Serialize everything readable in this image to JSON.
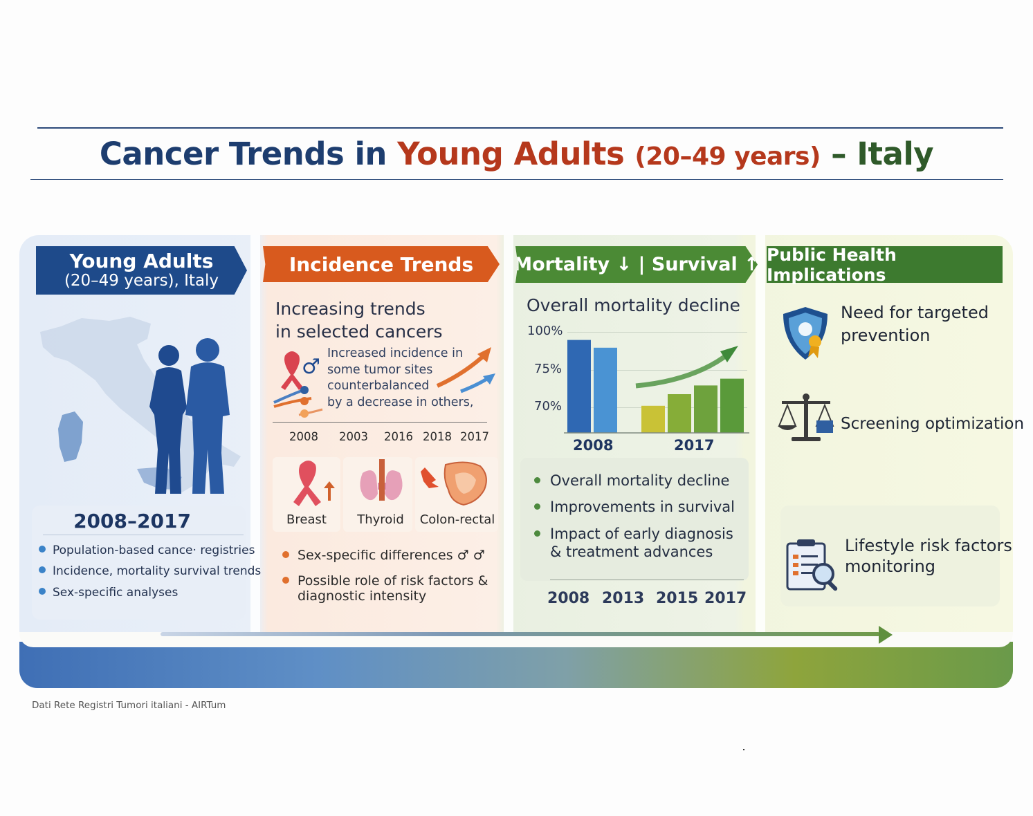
{
  "title": {
    "part1": "Cancer Trends in ",
    "part2": "Young Adults ",
    "part3": "(20–49 years)",
    "part4": " – Italy"
  },
  "panel1": {
    "banner_line1": "Young Adults",
    "banner_line2": "(20–49 years), Italy",
    "years": "2008–2017",
    "bullets": [
      "Population-based cance· registries",
      "Incidence, mortality survival trends",
      "Sex-specific analyses"
    ]
  },
  "panel2": {
    "banner": "Incidence Trends",
    "heading_line1": "Increasing trends",
    "heading_line2": "in selected cancers",
    "note_lines": [
      "Increased incidence in",
      "some tumor sites",
      "counterbalanced",
      "by a decrease in others,"
    ],
    "years": [
      "2008",
      "2003",
      "2016",
      "2018",
      "2017"
    ],
    "organs": [
      {
        "label": "Breast",
        "icon": "ribbon-icon"
      },
      {
        "label": "Thyroid",
        "icon": "thyroid-icon"
      },
      {
        "label": "Colon-rectal",
        "icon": "colon-icon"
      }
    ],
    "bullets": [
      "Sex-specific differences ♂ ♂",
      "Possible role of risk factors &",
      "diagnostic intensity"
    ]
  },
  "panel3": {
    "banner_left": "Mortality",
    "banner_right": "Survival",
    "heading": "Overall mortality  decline",
    "chart_data": {
      "type": "bar",
      "yticks": [
        "100%",
        "75%",
        "70%"
      ],
      "groups": [
        {
          "label": "2008",
          "bars": [
            0.96,
            0.88
          ],
          "colors": [
            "#2f68b3",
            "#4a93d3"
          ]
        },
        {
          "label": "2017",
          "bars": [
            0.28,
            0.4,
            0.49,
            0.56
          ],
          "colors": [
            "#c9c236",
            "#86ad38",
            "#6ea23d",
            "#5a9a3a"
          ]
        }
      ]
    },
    "bullets": [
      "Overall mortality decline",
      "Improvements in survival",
      "Impact of early diagnosis",
      "& treatment advances"
    ],
    "years": [
      "2008",
      "2013",
      "2015",
      "2017"
    ]
  },
  "panel4": {
    "banner": "Public Health Implications",
    "items": [
      {
        "line1": "Need for targeted",
        "line2": "prevention",
        "icon": "shield-icon"
      },
      {
        "line1": "Screening optimization",
        "icon": "scales-icon"
      },
      {
        "line1": "Lifestyle risk factors",
        "line2": "monitoring",
        "icon": "clipboard-search-icon"
      }
    ]
  },
  "footer": "Dati Rete Registri Tumori italiani - AIRTum"
}
